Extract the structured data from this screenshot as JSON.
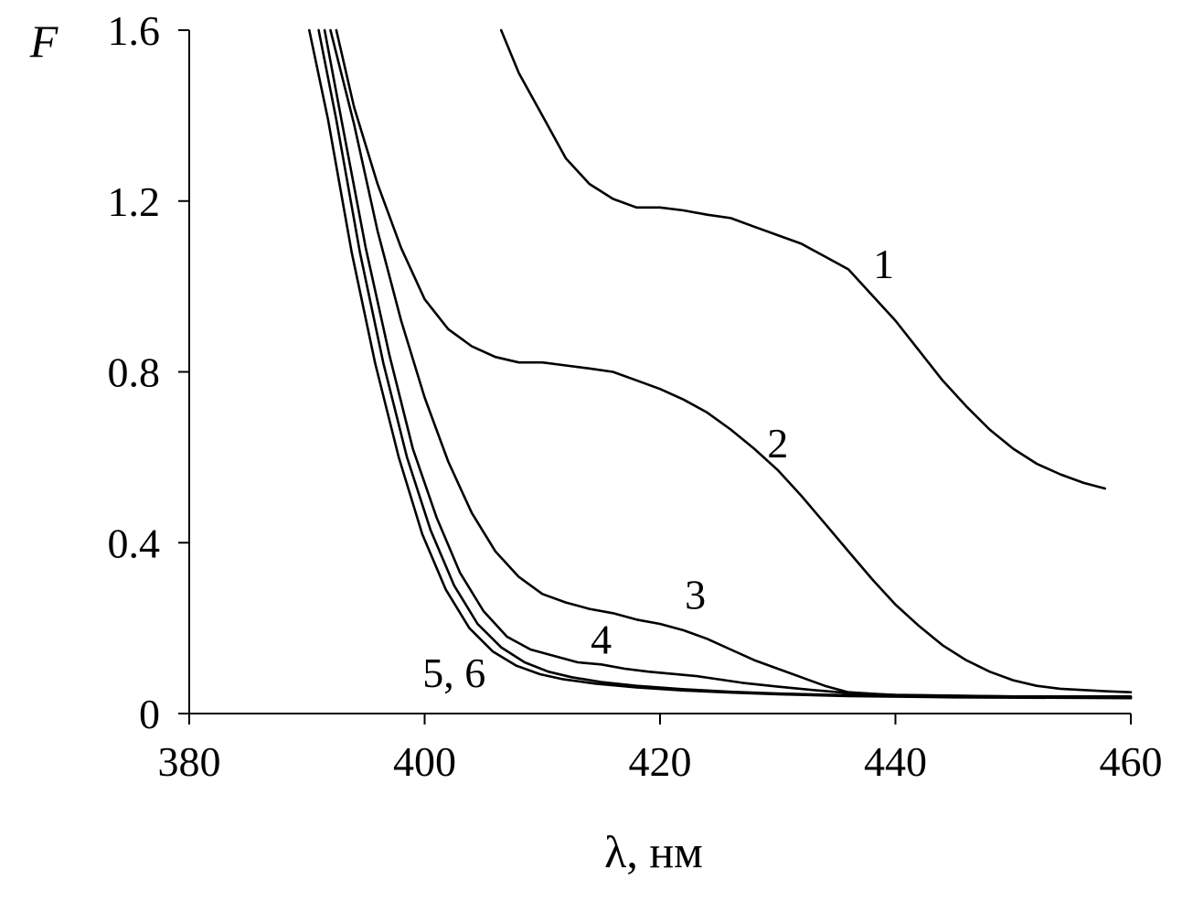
{
  "chart_data": {
    "type": "line",
    "xlabel": "λ, нм",
    "ylabel": "F",
    "xlim": [
      380,
      460
    ],
    "ylim": [
      0,
      1.6
    ],
    "x_ticks": [
      380,
      400,
      420,
      440,
      460
    ],
    "y_ticks": [
      0,
      0.4,
      0.8,
      1.2,
      1.6
    ],
    "x_tick_labels": [
      "380",
      "400",
      "420",
      "440",
      "460"
    ],
    "y_tick_labels": [
      "0",
      "0.4",
      "0.8",
      "1.2",
      "1.6"
    ],
    "grid": false,
    "line_color": "#000000",
    "series": [
      {
        "name": "1",
        "points": [
          [
            406.5,
            1.6
          ],
          [
            408,
            1.5
          ],
          [
            410,
            1.4
          ],
          [
            412,
            1.3
          ],
          [
            414,
            1.24
          ],
          [
            416,
            1.205
          ],
          [
            418,
            1.185
          ],
          [
            420,
            1.185
          ],
          [
            422,
            1.178
          ],
          [
            424,
            1.168
          ],
          [
            426,
            1.16
          ],
          [
            428,
            1.14
          ],
          [
            430,
            1.12
          ],
          [
            432,
            1.1
          ],
          [
            434,
            1.07
          ],
          [
            436,
            1.04
          ],
          [
            438,
            0.98
          ],
          [
            440,
            0.92
          ],
          [
            442,
            0.85
          ],
          [
            444,
            0.78
          ],
          [
            446,
            0.72
          ],
          [
            448,
            0.665
          ],
          [
            450,
            0.62
          ],
          [
            452,
            0.585
          ],
          [
            454,
            0.56
          ],
          [
            456,
            0.54
          ],
          [
            457.8,
            0.527
          ]
        ]
      },
      {
        "name": "2",
        "points": [
          [
            392.5,
            1.6
          ],
          [
            394,
            1.42
          ],
          [
            396,
            1.24
          ],
          [
            398,
            1.09
          ],
          [
            400,
            0.97
          ],
          [
            402,
            0.9
          ],
          [
            404,
            0.86
          ],
          [
            406,
            0.835
          ],
          [
            408,
            0.822
          ],
          [
            410,
            0.822
          ],
          [
            412,
            0.815
          ],
          [
            414,
            0.808
          ],
          [
            416,
            0.8
          ],
          [
            418,
            0.78
          ],
          [
            420,
            0.76
          ],
          [
            422,
            0.735
          ],
          [
            424,
            0.705
          ],
          [
            426,
            0.665
          ],
          [
            428,
            0.62
          ],
          [
            430,
            0.57
          ],
          [
            432,
            0.51
          ],
          [
            434,
            0.445
          ],
          [
            436,
            0.38
          ],
          [
            438,
            0.315
          ],
          [
            440,
            0.255
          ],
          [
            442,
            0.205
          ],
          [
            444,
            0.16
          ],
          [
            446,
            0.125
          ],
          [
            448,
            0.098
          ],
          [
            450,
            0.078
          ],
          [
            452,
            0.065
          ],
          [
            454,
            0.058
          ],
          [
            456,
            0.055
          ],
          [
            458,
            0.052
          ],
          [
            460,
            0.05
          ]
        ]
      },
      {
        "name": "3",
        "points": [
          [
            392,
            1.6
          ],
          [
            394,
            1.38
          ],
          [
            396,
            1.13
          ],
          [
            398,
            0.92
          ],
          [
            400,
            0.74
          ],
          [
            402,
            0.59
          ],
          [
            404,
            0.47
          ],
          [
            406,
            0.38
          ],
          [
            408,
            0.32
          ],
          [
            410,
            0.28
          ],
          [
            412,
            0.26
          ],
          [
            414,
            0.245
          ],
          [
            416,
            0.235
          ],
          [
            418,
            0.22
          ],
          [
            420,
            0.21
          ],
          [
            422,
            0.195
          ],
          [
            424,
            0.175
          ],
          [
            426,
            0.15
          ],
          [
            428,
            0.125
          ],
          [
            430,
            0.105
          ],
          [
            432,
            0.085
          ],
          [
            434,
            0.065
          ],
          [
            436,
            0.05
          ],
          [
            440,
            0.043
          ],
          [
            450,
            0.04
          ],
          [
            460,
            0.04
          ]
        ]
      },
      {
        "name": "4",
        "points": [
          [
            391.5,
            1.6
          ],
          [
            393,
            1.38
          ],
          [
            395,
            1.09
          ],
          [
            397,
            0.84
          ],
          [
            399,
            0.62
          ],
          [
            401,
            0.46
          ],
          [
            403,
            0.33
          ],
          [
            405,
            0.24
          ],
          [
            407,
            0.18
          ],
          [
            409,
            0.15
          ],
          [
            411,
            0.135
          ],
          [
            413,
            0.12
          ],
          [
            415,
            0.115
          ],
          [
            417,
            0.105
          ],
          [
            419,
            0.098
          ],
          [
            421,
            0.093
          ],
          [
            423,
            0.088
          ],
          [
            425,
            0.08
          ],
          [
            427,
            0.072
          ],
          [
            430,
            0.063
          ],
          [
            433,
            0.055
          ],
          [
            436,
            0.048
          ],
          [
            440,
            0.044
          ],
          [
            450,
            0.04
          ],
          [
            460,
            0.038
          ]
        ]
      },
      {
        "name": "5",
        "points": [
          [
            391,
            1.6
          ],
          [
            392.5,
            1.39
          ],
          [
            394.5,
            1.08
          ],
          [
            396.5,
            0.82
          ],
          [
            398.5,
            0.6
          ],
          [
            400.5,
            0.43
          ],
          [
            402.5,
            0.3
          ],
          [
            404.5,
            0.21
          ],
          [
            406.5,
            0.155
          ],
          [
            408.5,
            0.12
          ],
          [
            410.5,
            0.098
          ],
          [
            412.5,
            0.085
          ],
          [
            415,
            0.074
          ],
          [
            418,
            0.065
          ],
          [
            422,
            0.057
          ],
          [
            426,
            0.051
          ],
          [
            430,
            0.047
          ],
          [
            436,
            0.043
          ],
          [
            445,
            0.04
          ],
          [
            460,
            0.038
          ]
        ]
      },
      {
        "name": "6",
        "points": [
          [
            390.2,
            1.6
          ],
          [
            391.8,
            1.39
          ],
          [
            393.8,
            1.08
          ],
          [
            395.8,
            0.82
          ],
          [
            397.8,
            0.6
          ],
          [
            399.8,
            0.42
          ],
          [
            401.8,
            0.29
          ],
          [
            403.8,
            0.2
          ],
          [
            405.8,
            0.145
          ],
          [
            407.8,
            0.112
          ],
          [
            409.8,
            0.092
          ],
          [
            411.8,
            0.08
          ],
          [
            414.5,
            0.07
          ],
          [
            418,
            0.061
          ],
          [
            422,
            0.054
          ],
          [
            426,
            0.049
          ],
          [
            430,
            0.045
          ],
          [
            436,
            0.041
          ],
          [
            445,
            0.038
          ],
          [
            460,
            0.036
          ]
        ]
      }
    ],
    "annotations": [
      {
        "text": "1",
        "x": 439,
        "y": 1.02
      },
      {
        "text": "2",
        "x": 430,
        "y": 0.6
      },
      {
        "text": "3",
        "x": 423,
        "y": 0.245
      },
      {
        "text": "4",
        "x": 415,
        "y": 0.14
      },
      {
        "text": "5, 6",
        "x": 402.5,
        "y": 0.062
      }
    ]
  }
}
